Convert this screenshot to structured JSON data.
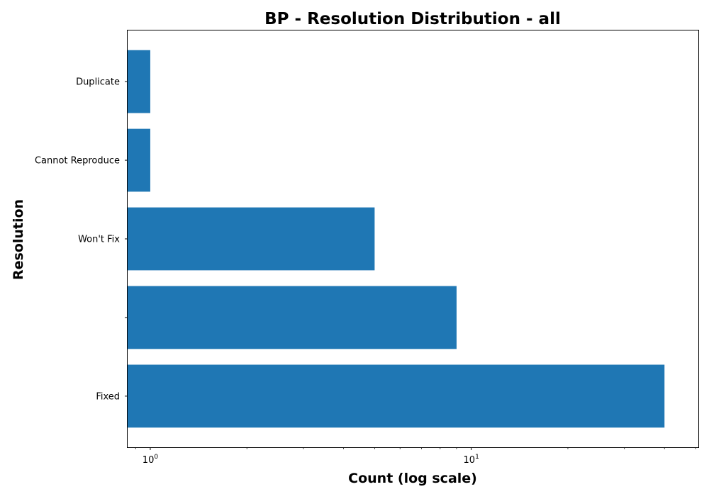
{
  "chart_data": {
    "type": "bar",
    "orientation": "horizontal",
    "title": "BP - Resolution Distribution - all",
    "xlabel": "Count (log scale)",
    "ylabel": "Resolution",
    "x_scale": "log",
    "xlim": [
      0.85,
      51
    ],
    "x_ticks": [
      {
        "value": 1,
        "base": "10",
        "exp": "0"
      },
      {
        "value": 10,
        "base": "10",
        "exp": "1"
      }
    ],
    "categories": [
      "Fixed",
      "",
      "Won't Fix",
      "Cannot Reproduce",
      "Duplicate"
    ],
    "values": [
      40,
      9,
      5,
      1,
      1
    ],
    "bar_color": "#1f77b4",
    "grid": false,
    "legend": "none"
  }
}
